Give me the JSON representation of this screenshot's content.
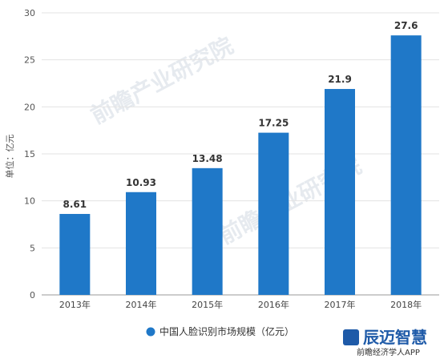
{
  "chart_data": {
    "type": "bar",
    "categories": [
      "2013年",
      "2014年",
      "2015年",
      "2016年",
      "2017年",
      "2018年"
    ],
    "series": [
      {
        "name": "中国人脸识别市场规模（亿元）",
        "values": [
          8.61,
          10.93,
          13.48,
          17.25,
          21.9,
          27.6
        ]
      }
    ],
    "value_labels": [
      "8.61",
      "10.93",
      "13.48",
      "17.25",
      "21.9",
      "27.6"
    ],
    "ylabel": "单位：亿元",
    "ylim": [
      0,
      30
    ],
    "yticks": [
      0,
      5,
      10,
      15,
      20,
      25,
      30
    ],
    "grid": true,
    "legend": "bottom-center",
    "bar_color": "#1f78c8"
  },
  "watermark": {
    "text": "前瞻产业研究院"
  },
  "logo": {
    "title": "辰迈智慧",
    "subtitle": "前瞻经济学人APP"
  }
}
